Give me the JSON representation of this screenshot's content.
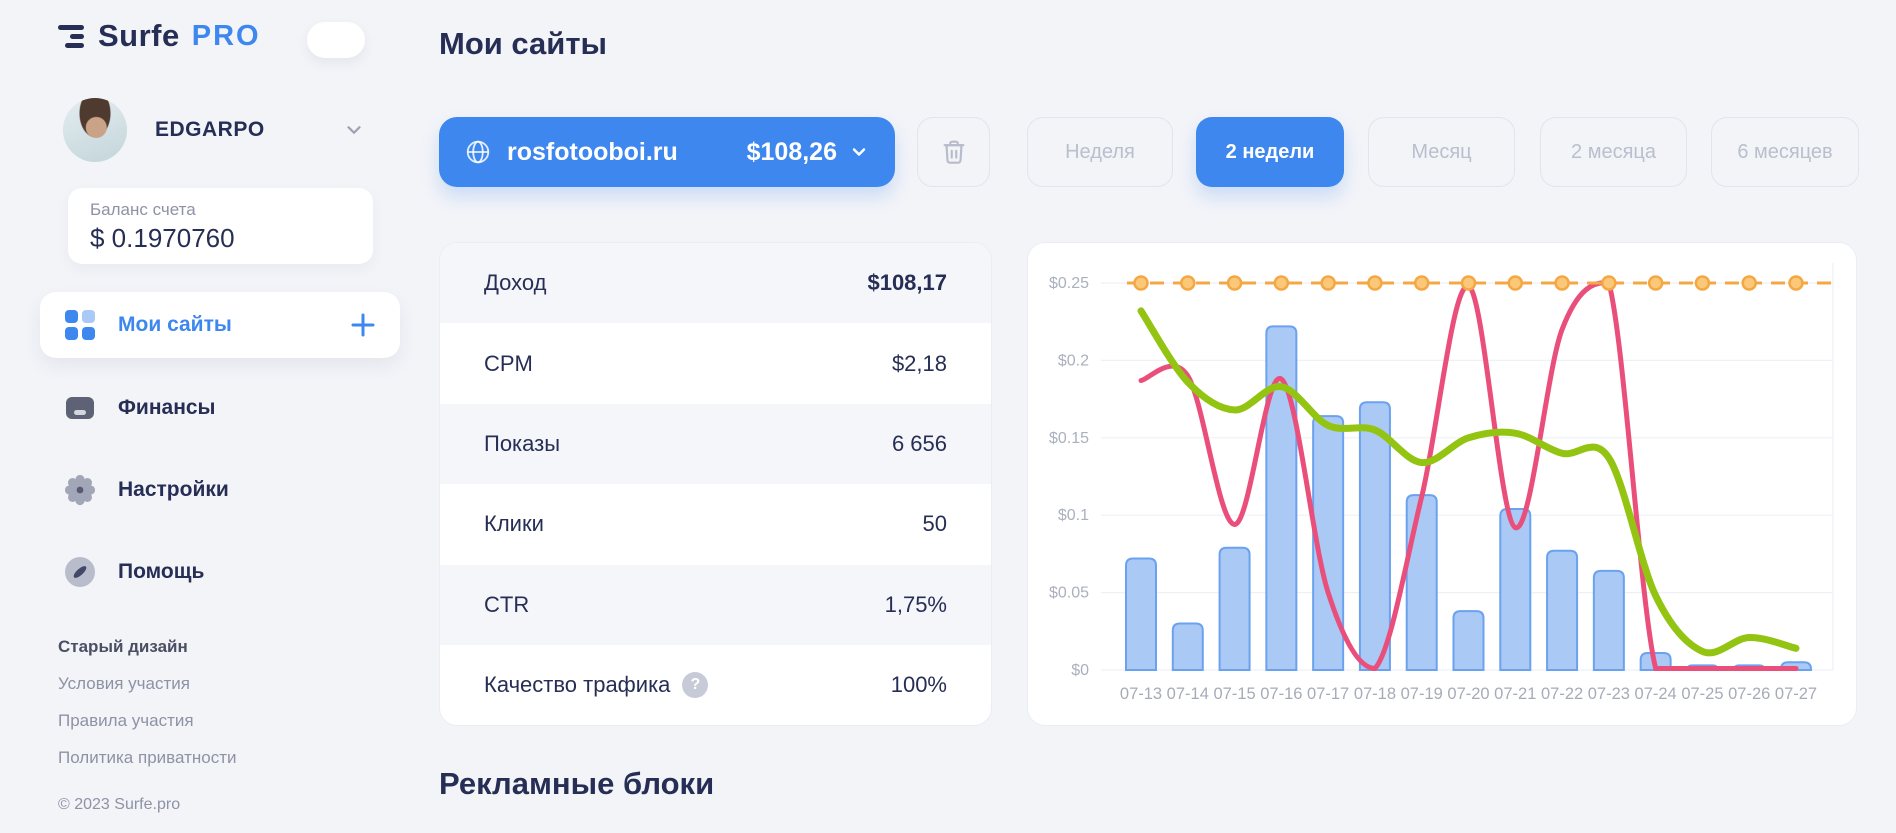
{
  "sidebar": {
    "logo": {
      "brand": "Surfe",
      "badge": "PRO"
    },
    "user": {
      "name": "EDGARPO"
    },
    "balance": {
      "label": "Баланс счета",
      "value": "$ 0.1970760"
    },
    "nav": [
      {
        "label": "Мои сайты",
        "active": true
      },
      {
        "label": "Финансы",
        "active": false
      },
      {
        "label": "Настройки",
        "active": false
      },
      {
        "label": "Помощь",
        "active": false
      }
    ],
    "links": [
      "Старый дизайн",
      "Условия участия",
      "Правила участия",
      "Политика приватности"
    ],
    "copyright": "© 2023 Surfe.pro"
  },
  "main": {
    "title": "Мои сайты",
    "site_selector": {
      "domain": "rosfotooboi.ru",
      "balance": "$108,26"
    },
    "periods": [
      {
        "label": "Неделя",
        "active": false
      },
      {
        "label": "2 недели",
        "active": true
      },
      {
        "label": "Месяц",
        "active": false
      },
      {
        "label": "2 месяца",
        "active": false
      },
      {
        "label": "6 месяцев",
        "active": false
      }
    ],
    "stats": [
      {
        "label": "Доход",
        "value": "$108,17"
      },
      {
        "label": "CPM",
        "value": "$2,18"
      },
      {
        "label": "Показы",
        "value": "6 656"
      },
      {
        "label": "Клики",
        "value": "50"
      },
      {
        "label": "CTR",
        "value": "1,75%"
      },
      {
        "label": "Качество трафика",
        "value": "100%",
        "has_help": true
      }
    ],
    "section_title": "Рекламные блоки"
  },
  "colors": {
    "accent_blue": "#3d87ee",
    "page_background": "#f3f4f8",
    "dark_navy_text": "#272e55",
    "muted_text": "#8d92a5",
    "inactive_button_text": "#b9bfcd"
  },
  "chart_data": {
    "type": "bar",
    "categories": [
      "07-13",
      "07-14",
      "07-15",
      "07-16",
      "07-17",
      "07-18",
      "07-19",
      "07-20",
      "07-21",
      "07-22",
      "07-23",
      "07-24",
      "07-25",
      "07-26",
      "07-27"
    ],
    "y_max": 0.25,
    "ylim": [
      0,
      0.25
    ],
    "grid": true,
    "legend": "none",
    "y_ticks": [
      {
        "v": 0,
        "label": "$0"
      },
      {
        "v": 0.05,
        "label": "$0.05"
      },
      {
        "v": 0.1,
        "label": "$0.1"
      },
      {
        "v": 0.15,
        "label": "$0.15"
      },
      {
        "v": 0.2,
        "label": "$0.2"
      },
      {
        "v": 0.25,
        "label": "$0.25"
      }
    ],
    "series": [
      {
        "name": "daily-revenue-bars",
        "type": "bar",
        "color": "#aac9f5",
        "stroke": "#6ba2ef",
        "values": [
          0.072,
          0.03,
          0.079,
          0.222,
          0.164,
          0.173,
          0.113,
          0.038,
          0.104,
          0.077,
          0.064,
          0.011,
          0.003,
          0.003,
          0.005
        ]
      },
      {
        "name": "pink-line",
        "type": "line",
        "color": "#ea4f7c",
        "width": 5,
        "values": [
          0.187,
          0.19,
          0.094,
          0.188,
          0.05,
          0.001,
          0.112,
          0.248,
          0.092,
          0.22,
          0.25,
          0.001,
          0.001,
          0.001,
          0.001
        ]
      },
      {
        "name": "green-line",
        "type": "line",
        "color": "#93c411",
        "width": 7,
        "values": [
          0.232,
          0.186,
          0.168,
          0.183,
          0.158,
          0.155,
          0.134,
          0.15,
          0.153,
          0.14,
          0.137,
          0.048,
          0.012,
          0.021,
          0.014
        ]
      },
      {
        "name": "orange-dashed-limit-line",
        "type": "dashed-line",
        "color": "#f4a844",
        "marker_fill": "#fbc879",
        "values": [
          0.25,
          0.25,
          0.25,
          0.25,
          0.25,
          0.25,
          0.25,
          0.25,
          0.25,
          0.25,
          0.25,
          0.25,
          0.25,
          0.25,
          0.25
        ]
      }
    ]
  }
}
